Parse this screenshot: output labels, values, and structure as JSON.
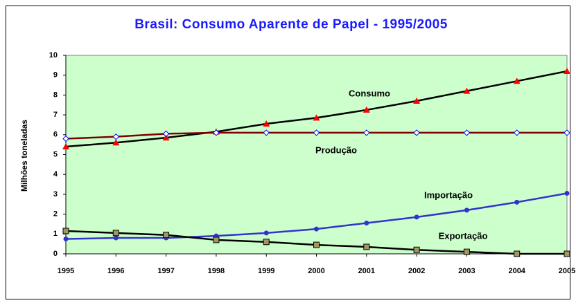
{
  "chart_data": {
    "type": "line",
    "title": "Brasil:  Consumo Aparente de Papel - 1995/2005",
    "y_label": "Milhões toneladas",
    "categories": [
      "1995",
      "1996",
      "1997",
      "1998",
      "1999",
      "2000",
      "2001",
      "2002",
      "2003",
      "2004",
      "2005"
    ],
    "series": [
      {
        "name": "Consumo",
        "color": "#000000",
        "marker_color": "#ff0000",
        "marker": "triangle",
        "values": [
          5.4,
          5.6,
          5.85,
          6.15,
          6.55,
          6.85,
          7.25,
          7.7,
          8.2,
          8.7,
          9.2
        ]
      },
      {
        "name": "Produção",
        "color": "#800000",
        "marker_color": "#0000ff",
        "marker": "diamond",
        "values": [
          5.8,
          5.9,
          6.05,
          6.1,
          6.1,
          6.1,
          6.1,
          6.1,
          6.1,
          6.1,
          6.1
        ]
      },
      {
        "name": "Importação",
        "color": "#3333cc",
        "marker_color": "#3333cc",
        "marker": "circle",
        "values": [
          0.75,
          0.8,
          0.8,
          0.9,
          1.05,
          1.25,
          1.55,
          1.85,
          2.2,
          2.6,
          3.05
        ]
      },
      {
        "name": "Exportação",
        "color": "#000000",
        "marker_color": "#a09860",
        "marker": "square",
        "values": [
          1.15,
          1.05,
          0.95,
          0.7,
          0.6,
          0.45,
          0.35,
          0.2,
          0.1,
          0.0,
          0.0
        ]
      }
    ],
    "ylim": [
      0,
      10
    ],
    "yticks": [
      0,
      1,
      2,
      3,
      4,
      5,
      6,
      7,
      8,
      9,
      10
    ],
    "plot_background": "#ccffcc"
  }
}
